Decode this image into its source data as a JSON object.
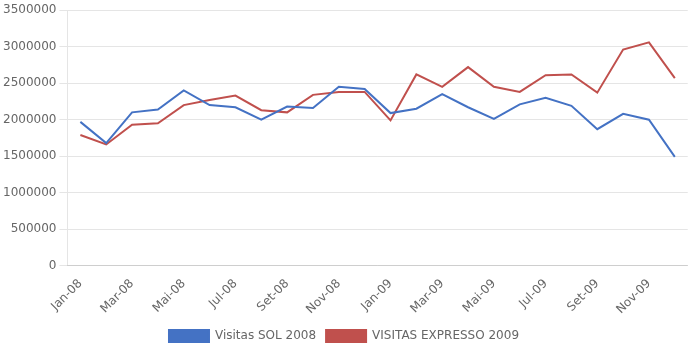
{
  "chart_data": {
    "type": "line",
    "categories": [
      "Jan-08",
      null,
      "Mar-08",
      null,
      "Mai-08",
      null,
      "Jul-08",
      null,
      "Set-08",
      null,
      "Nov-08",
      null,
      "Jan-09",
      null,
      "Mar-09",
      null,
      "Mai-09",
      null,
      "Jul-09",
      null,
      "Set-09",
      null,
      "Nov-09",
      null
    ],
    "series": [
      {
        "name": "Visitas SOL 2008",
        "color": "#4472C4",
        "values": [
          1970000,
          1680000,
          2100000,
          2140000,
          2400000,
          2200000,
          2170000,
          2000000,
          2180000,
          2160000,
          2450000,
          2420000,
          2090000,
          2150000,
          2350000,
          2170000,
          2010000,
          2210000,
          2300000,
          2190000,
          1870000,
          2080000,
          2000000,
          1490000
        ]
      },
      {
        "name": "VISITAS EXPRESSO 2009",
        "color": "#C0504D",
        "values": [
          1790000,
          1660000,
          1930000,
          1950000,
          2200000,
          2270000,
          2330000,
          2130000,
          2100000,
          2340000,
          2380000,
          2380000,
          1990000,
          2620000,
          2450000,
          2720000,
          2450000,
          2380000,
          2610000,
          2620000,
          2370000,
          2960000,
          3060000,
          2570000
        ]
      }
    ],
    "ylim": [
      0,
      3500000
    ],
    "yticks": [
      0,
      500000,
      1000000,
      1500000,
      2000000,
      2500000,
      3000000,
      3500000
    ],
    "grid": "y",
    "legend": "bottom"
  }
}
